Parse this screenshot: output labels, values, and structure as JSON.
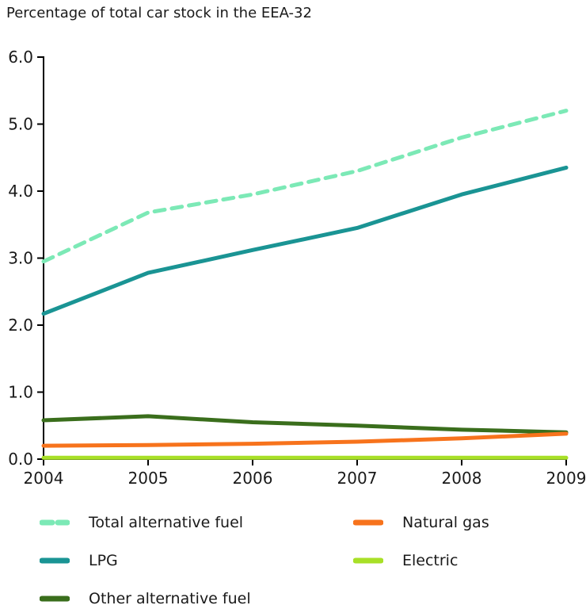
{
  "title": "Percentage of total car stock in the EEA-32",
  "axis": {
    "y_ticks": [
      "0.0",
      "1.0",
      "2.0",
      "3.0",
      "4.0",
      "5.0",
      "6.0"
    ],
    "x_ticks": [
      "2004",
      "2005",
      "2006",
      "2007",
      "2008",
      "2009"
    ]
  },
  "colors": {
    "axis": "#000000",
    "text": "#1a1a1a",
    "total_alternative_fuel": "#7ce9b6",
    "lpg": "#1a9494",
    "other_alternative_fuel": "#3a6e1c",
    "natural_gas": "#f7731c",
    "electric": "#a8e027"
  },
  "chart_data": {
    "type": "line",
    "title": "Percentage of total car stock in the EEA-32",
    "xlabel": "",
    "ylabel": "",
    "x": [
      2004,
      2005,
      2006,
      2007,
      2008,
      2009
    ],
    "ylim": [
      0,
      6
    ],
    "grid": false,
    "legend_position": "bottom",
    "series": [
      {
        "name": "Total alternative fuel",
        "values": [
          2.95,
          3.68,
          3.95,
          4.3,
          4.8,
          5.2
        ],
        "color": "#7ce9b6",
        "style": "dashed"
      },
      {
        "name": "LPG",
        "values": [
          2.17,
          2.78,
          3.12,
          3.45,
          3.95,
          4.35
        ],
        "color": "#1a9494",
        "style": "solid"
      },
      {
        "name": "Other alternative fuel",
        "values": [
          0.58,
          0.64,
          0.55,
          0.5,
          0.44,
          0.4
        ],
        "color": "#3a6e1c",
        "style": "solid"
      },
      {
        "name": "Natural gas",
        "values": [
          0.2,
          0.21,
          0.23,
          0.26,
          0.31,
          0.38
        ],
        "color": "#f7731c",
        "style": "solid"
      },
      {
        "name": "Electric",
        "values": [
          0.02,
          0.02,
          0.02,
          0.02,
          0.02,
          0.02
        ],
        "color": "#a8e027",
        "style": "solid"
      }
    ]
  }
}
